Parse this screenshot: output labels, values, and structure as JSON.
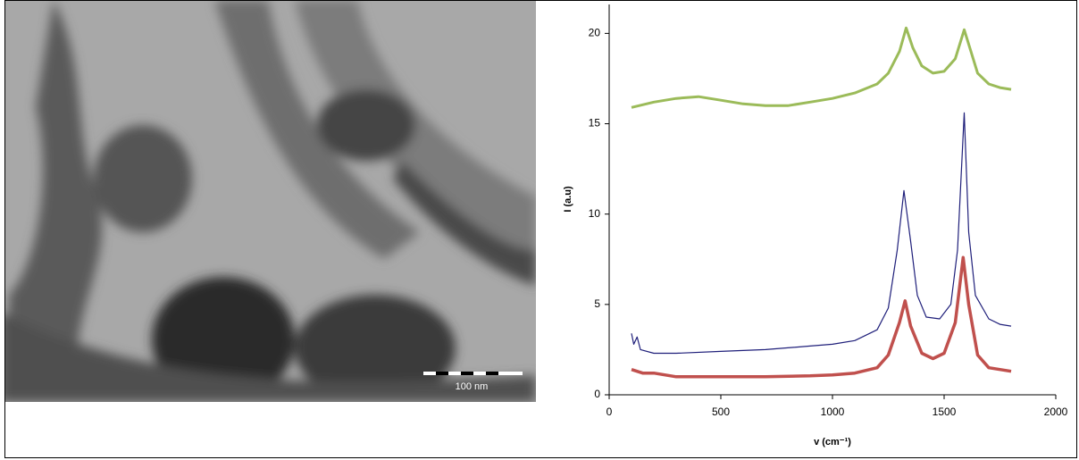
{
  "scale_bar": {
    "label": "100 nm"
  },
  "chart_data": {
    "type": "line",
    "xlabel": "v (cm⁻¹)",
    "ylabel": "I (a.u)",
    "xlim": [
      0,
      2000
    ],
    "xticks": [
      0,
      500,
      1000,
      1500,
      2000
    ],
    "ylim": [
      0,
      21.6
    ],
    "yticks": [
      0,
      5,
      10,
      15,
      20
    ],
    "series": [
      {
        "color": "#9bbb59",
        "x": [
          100,
          200,
          300,
          400,
          500,
          600,
          700,
          800,
          900,
          1000,
          1100,
          1200,
          1250,
          1300,
          1330,
          1360,
          1400,
          1450,
          1500,
          1550,
          1590,
          1620,
          1650,
          1700,
          1750,
          1800
        ],
        "values": [
          15.9,
          16.2,
          16.4,
          16.5,
          16.3,
          16.1,
          16.0,
          16.0,
          16.2,
          16.4,
          16.7,
          17.2,
          17.8,
          19.0,
          20.3,
          19.2,
          18.2,
          17.8,
          17.9,
          18.6,
          20.2,
          19.0,
          17.8,
          17.2,
          17.0,
          16.9
        ]
      },
      {
        "color": "#1f1f7a",
        "x": [
          100,
          110,
          125,
          140,
          200,
          300,
          500,
          700,
          900,
          1000,
          1100,
          1200,
          1250,
          1290,
          1320,
          1350,
          1380,
          1420,
          1480,
          1530,
          1560,
          1590,
          1610,
          1640,
          1700,
          1750,
          1800
        ],
        "values": [
          3.4,
          2.8,
          3.2,
          2.5,
          2.3,
          2.3,
          2.4,
          2.5,
          2.7,
          2.8,
          3.0,
          3.6,
          4.8,
          8.0,
          11.3,
          8.5,
          5.5,
          4.3,
          4.2,
          5.0,
          8.0,
          15.6,
          9.0,
          5.5,
          4.2,
          3.9,
          3.8
        ]
      },
      {
        "color": "#c0504d",
        "x": [
          100,
          150,
          200,
          300,
          500,
          700,
          900,
          1000,
          1100,
          1200,
          1250,
          1300,
          1325,
          1350,
          1400,
          1450,
          1500,
          1550,
          1585,
          1610,
          1650,
          1700,
          1800
        ],
        "values": [
          1.4,
          1.2,
          1.2,
          1.0,
          1.0,
          1.0,
          1.05,
          1.1,
          1.2,
          1.5,
          2.2,
          4.0,
          5.2,
          3.8,
          2.3,
          2.0,
          2.3,
          4.0,
          7.6,
          5.0,
          2.2,
          1.5,
          1.3
        ]
      }
    ]
  }
}
